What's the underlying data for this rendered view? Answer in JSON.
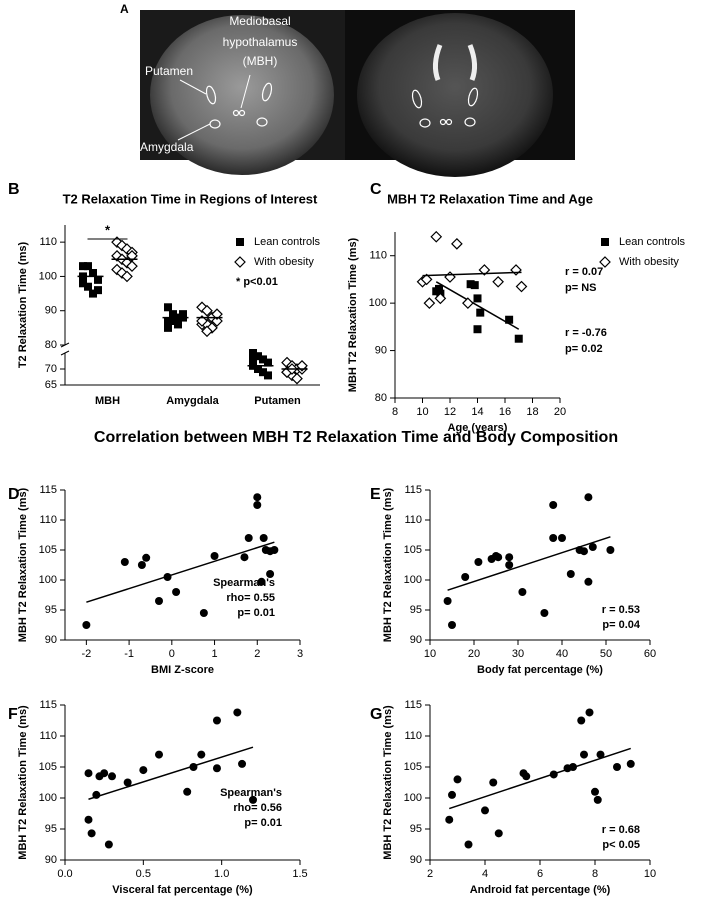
{
  "figure_title": "Correlation between MBH T2  Relaxation Time and Body Composition",
  "panel_a": {
    "label": "A",
    "labels": [
      "Mediobasal",
      "hypothalamus",
      "(MBH)",
      "Putamen",
      "Amygdala"
    ]
  },
  "chart_data": [
    {
      "type": "dot",
      "panel_label": "B",
      "title": "T2 Relaxation Time in Regions of Interest",
      "ylabel": "T2 Relaxation Time (ms)",
      "categories": [
        "MBH",
        "Amygdala",
        "Putamen"
      ],
      "ylim": [
        65,
        115
      ],
      "ybreak": [
        75,
        80
      ],
      "yticks": [
        65,
        70,
        80,
        90,
        100,
        110
      ],
      "series": [
        {
          "name": "Lean controls",
          "marker": "square",
          "color": "#000000",
          "values": [
            [
              103,
              103,
              101,
              99,
              98,
              97,
              95,
              96,
              100
            ],
            [
              91,
              89,
              88,
              88,
              87,
              87,
              86,
              89,
              85
            ],
            [
              75,
              74,
              73,
              72,
              71,
              70,
              69,
              68,
              73
            ]
          ],
          "means": [
            100,
            88,
            71
          ]
        },
        {
          "name": "With obesity",
          "marker": "diamond",
          "color": "#000000",
          "values": [
            [
              110,
              109,
              108,
              107,
              106,
              105,
              104,
              103,
              102,
              101,
              100,
              106
            ],
            [
              91,
              90,
              88,
              87,
              86,
              86,
              85,
              89,
              87,
              84
            ],
            [
              72,
              71,
              70,
              70,
              69,
              68,
              67,
              71,
              69,
              70
            ]
          ],
          "means": [
            105,
            88,
            70
          ]
        }
      ],
      "annotations": [
        "*",
        "* p<0.01"
      ]
    },
    {
      "type": "scatter",
      "panel_label": "C",
      "title": "MBH T2 Relaxation Time and Age",
      "xlabel": "Age (years)",
      "ylabel": "MBH T2 Relaxation Time (ms)",
      "xlim": [
        8,
        20
      ],
      "xticks": [
        8,
        10,
        12,
        14,
        16,
        18,
        20
      ],
      "ylim": [
        80,
        115
      ],
      "yticks": [
        80,
        90,
        100,
        110
      ],
      "series": [
        {
          "name": "Lean controls",
          "marker": "square",
          "color": "#000000",
          "x": [
            11,
            11.2,
            11.3,
            13.5,
            13.8,
            14,
            14.2,
            14,
            16.3,
            17
          ],
          "values": [
            102.5,
            103,
            102,
            104,
            103.8,
            101,
            98,
            94.5,
            96.5,
            92.5
          ],
          "trend": {
            "x": [
              11,
              17
            ],
            "values": [
              104.5,
              94.5
            ]
          }
        },
        {
          "name": "With obesity",
          "marker": "diamond",
          "color": "#000000",
          "x": [
            10,
            10.3,
            10.5,
            11,
            11.3,
            12,
            12.5,
            13.3,
            14.5,
            15.5,
            16.8,
            17.2
          ],
          "values": [
            104.5,
            105,
            100,
            114,
            101,
            105.5,
            112.5,
            100,
            107,
            104.5,
            107,
            103.5
          ],
          "trend": {
            "x": [
              10,
              17.2
            ],
            "values": [
              105.8,
              106.5
            ]
          }
        }
      ],
      "annotations": [
        "r = 0.07",
        "p= NS",
        "r = -0.76",
        "p= 0.02"
      ]
    },
    {
      "type": "scatter",
      "panel_label": "D",
      "xlabel": "BMI Z-score",
      "ylabel": "MBH T2 Relaxation Time (ms)",
      "xlim": [
        -2.5,
        3
      ],
      "xticks": [
        -2,
        -1,
        0,
        1,
        2,
        3
      ],
      "ylim": [
        90,
        115
      ],
      "yticks": [
        90,
        95,
        100,
        105,
        110,
        115
      ],
      "series": [
        {
          "marker": "circle",
          "color": "#000000",
          "x": [
            -2,
            -1.1,
            -0.7,
            -0.6,
            -0.3,
            -0.1,
            0.1,
            0.75,
            1,
            1.7,
            1.8,
            2,
            2,
            2.1,
            2.15,
            2.2,
            2.3,
            2.3,
            2.4
          ],
          "values": [
            92.5,
            103,
            102.5,
            103.7,
            96.5,
            100.5,
            98,
            94.5,
            104,
            103.8,
            107,
            113.8,
            112.5,
            99.7,
            107,
            105,
            104.8,
            101,
            105
          ],
          "trend": {
            "x": [
              -2,
              2.4
            ],
            "values": [
              96.3,
              106.3
            ]
          }
        }
      ],
      "annotations": [
        "Spearman's",
        "rho= 0.55",
        "p= 0.01"
      ]
    },
    {
      "type": "scatter",
      "panel_label": "E",
      "xlabel": "Body fat percentage (%)",
      "ylabel": "MBH T2 Relaxation Time (ms)",
      "xlim": [
        10,
        60
      ],
      "xticks": [
        10,
        20,
        30,
        40,
        50,
        60
      ],
      "ylim": [
        90,
        115
      ],
      "yticks": [
        90,
        95,
        100,
        105,
        110,
        115
      ],
      "series": [
        {
          "marker": "circle",
          "color": "#000000",
          "x": [
            14,
            15,
            18,
            21,
            24,
            25,
            25.5,
            28,
            28,
            31,
            36,
            38,
            38,
            40,
            42,
            44,
            45,
            46,
            46,
            47,
            51
          ],
          "values": [
            96.5,
            92.5,
            100.5,
            103,
            103.5,
            104,
            103.8,
            103.8,
            102.5,
            98,
            94.5,
            112.5,
            107,
            107,
            101,
            105,
            104.8,
            113.8,
            99.7,
            105.5,
            105
          ],
          "trend": {
            "x": [
              14,
              51
            ],
            "values": [
              98.3,
              107.2
            ]
          }
        }
      ],
      "annotations": [
        "r = 0.53",
        "p= 0.04"
      ]
    },
    {
      "type": "scatter",
      "panel_label": "F",
      "xlabel": "Visceral fat percentage (%)",
      "ylabel": "MBH T2 Relaxation Time (ms)",
      "xlim": [
        0,
        1.5
      ],
      "xticks": [
        {
          "value": 0,
          "label": "0.0"
        },
        0.5,
        {
          "value": 1,
          "label": "1.0"
        },
        1.5
      ],
      "ylim": [
        90,
        115
      ],
      "yticks": [
        90,
        95,
        100,
        105,
        110,
        115
      ],
      "series": [
        {
          "marker": "circle",
          "color": "#000000",
          "x": [
            0.15,
            0.15,
            0.17,
            0.2,
            0.22,
            0.25,
            0.28,
            0.3,
            0.4,
            0.5,
            0.6,
            0.78,
            0.82,
            0.87,
            0.97,
            0.97,
            1.1,
            1.13,
            1.2
          ],
          "values": [
            96.5,
            104,
            94.3,
            100.5,
            103.5,
            104,
            92.5,
            103.5,
            102.5,
            104.5,
            107,
            101,
            105,
            107,
            112.5,
            104.8,
            113.8,
            105.5,
            99.7
          ],
          "trend": {
            "x": [
              0.15,
              1.2
            ],
            "values": [
              99.8,
              108.2
            ]
          }
        }
      ],
      "annotations": [
        "Spearman's",
        "rho= 0.56",
        "p= 0.01"
      ]
    },
    {
      "type": "scatter",
      "panel_label": "G",
      "xlabel": "Android fat percentage (%)",
      "ylabel": "MBH T2 Relaxation Time (ms)",
      "xlim": [
        2,
        10
      ],
      "xticks": [
        2,
        4,
        6,
        8,
        10
      ],
      "ylim": [
        90,
        115
      ],
      "yticks": [
        90,
        95,
        100,
        105,
        110,
        115
      ],
      "series": [
        {
          "marker": "circle",
          "color": "#000000",
          "x": [
            2.7,
            2.8,
            3,
            3.4,
            4,
            4.3,
            4.5,
            5.4,
            5.5,
            6.5,
            7,
            7.2,
            7.5,
            7.6,
            7.8,
            8,
            8.1,
            8.2,
            8.8,
            9.3
          ],
          "values": [
            96.5,
            100.5,
            103,
            92.5,
            98,
            102.5,
            94.3,
            104,
            103.5,
            103.8,
            104.8,
            105,
            112.5,
            107,
            113.8,
            101,
            99.7,
            107,
            105,
            105.5
          ],
          "trend": {
            "x": [
              2.7,
              9.3
            ],
            "values": [
              98.3,
              108
            ]
          }
        }
      ],
      "annotations": [
        "r = 0.68",
        "p< 0.05"
      ]
    }
  ]
}
